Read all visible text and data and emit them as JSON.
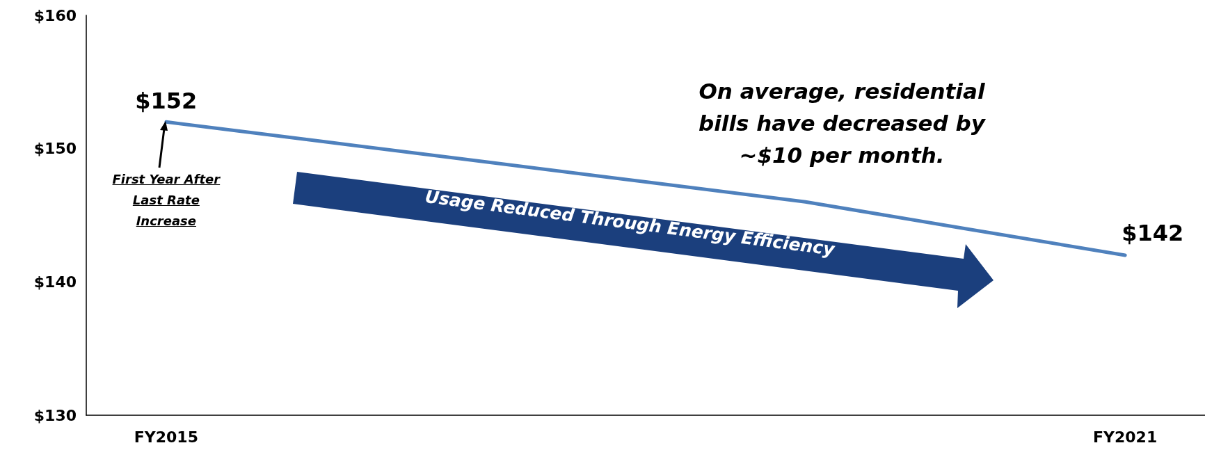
{
  "chart_data": {
    "type": "line",
    "categories": [
      "FY2015",
      null,
      null,
      null,
      null,
      null,
      "FY2021"
    ],
    "series": [
      {
        "color": "#4f81bd",
        "values": [
          152,
          150.5,
          149,
          147.5,
          146,
          144,
          142
        ],
        "value_labels": [
          "$152",
          null,
          null,
          null,
          null,
          null,
          "$142"
        ]
      }
    ],
    "ylim": [
      130,
      160
    ],
    "yticks": [
      {
        "value": 130,
        "label": "$130"
      },
      {
        "value": 140,
        "label": "$140"
      },
      {
        "value": 150,
        "label": "$150"
      },
      {
        "value": 160,
        "label": "$160"
      }
    ],
    "grid": false,
    "annotations": [
      "First Year After Last Rate Increase",
      "On average, residential bills have decreased by ~$10 per month.",
      "Usage Reduced Through Energy Efficiency"
    ]
  }
}
